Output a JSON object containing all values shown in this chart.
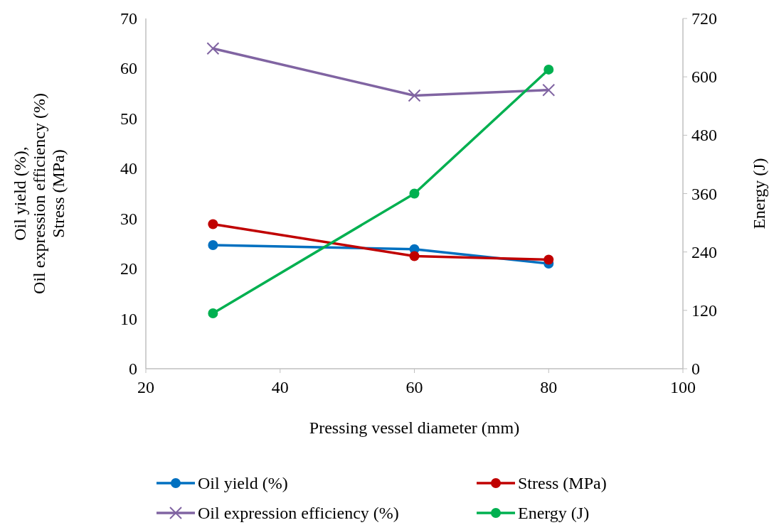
{
  "chart_data": {
    "type": "line",
    "xlabel": "Pressing vessel diameter (mm)",
    "ylabel": "Oil yield (%),\nOil expression efficiency (%)\nStress (MPa)",
    "y2label": "Energy (J)",
    "x": [
      30,
      60,
      80
    ],
    "xlim": [
      20,
      100
    ],
    "xticks": [
      20,
      40,
      60,
      80,
      100
    ],
    "ylim": [
      0,
      70
    ],
    "yticks": [
      0,
      10,
      20,
      30,
      40,
      50,
      60,
      70
    ],
    "y2lim": [
      0,
      720
    ],
    "y2ticks": [
      0,
      120,
      240,
      360,
      480,
      600,
      720
    ],
    "grid": false,
    "legend": "bottom",
    "series": [
      {
        "name": "Oil yield (%)",
        "color": "#0070c0",
        "marker": "circle",
        "values": [
          24.7,
          23.9,
          21.0
        ]
      },
      {
        "name": "Stress (MPa)",
        "color": "#c00000",
        "marker": "circle",
        "values": [
          28.9,
          22.5,
          21.8
        ]
      },
      {
        "name": "Oil expression efficiency (%)",
        "color": "#8064a2",
        "marker": "cross",
        "values": [
          64.0,
          54.6,
          55.7
        ]
      },
      {
        "name": "Energy (J)",
        "color": "#00b050",
        "marker": "circle",
        "axis": "y2",
        "values": [
          114,
          360,
          615
        ]
      }
    ]
  }
}
